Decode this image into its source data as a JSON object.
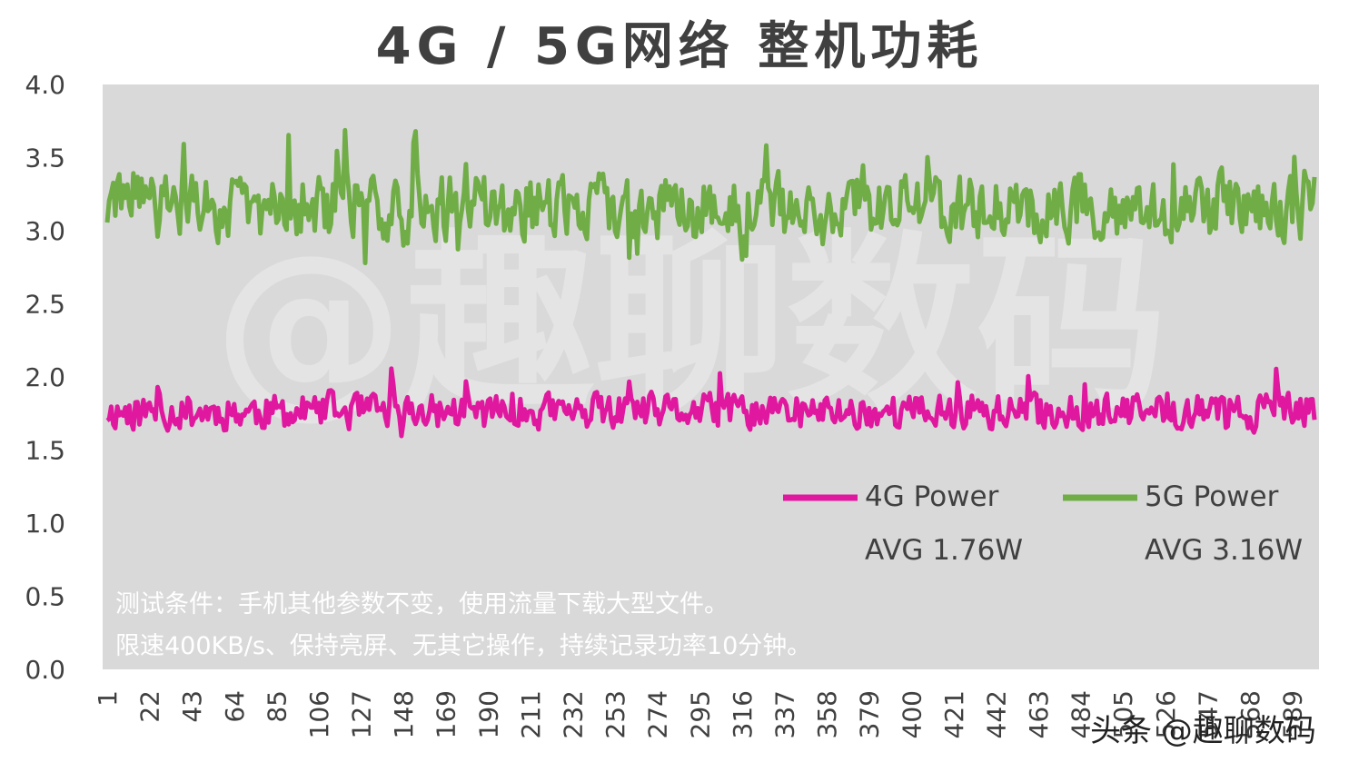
{
  "chart_data": {
    "type": "line",
    "title": "4G / 5G网络 整机功耗",
    "ylim": [
      0.0,
      4.0
    ],
    "y_ticks": [
      "0.0",
      "0.5",
      "1.0",
      "1.5",
      "2.0",
      "2.5",
      "3.0",
      "3.5",
      "4.0"
    ],
    "x_start": 1,
    "x_end": 600,
    "x_tick_labels": [
      "1",
      "22",
      "43",
      "64",
      "85",
      "106",
      "127",
      "148",
      "169",
      "190",
      "211",
      "232",
      "253",
      "274",
      "295",
      "316",
      "337",
      "358",
      "379",
      "400",
      "421",
      "442",
      "463",
      "484",
      "505",
      "526",
      "547",
      "568",
      "589"
    ],
    "grid": false,
    "plot_background": "#d9d9d9",
    "legend_position": "bottom-right",
    "series": [
      {
        "name": "4G Power",
        "color": "#e0189f",
        "avg_label": "AVG 1.76W",
        "mean": 1.76,
        "min": 1.52,
        "max": 2.36
      },
      {
        "name": "5G Power",
        "color": "#70ad47",
        "avg_label": "AVG 3.16W",
        "mean": 3.16,
        "min": 2.62,
        "max": 3.95
      }
    ],
    "annotations": [
      "测试条件：手机其他参数不变，使用流量下载大型文件。",
      "限速400KB/s、保持亮屏、无其它操作，持续记录功率10分钟。"
    ]
  },
  "watermarks": {
    "center": "@趣聊数码",
    "corner": "头条 @趣聊数码"
  }
}
